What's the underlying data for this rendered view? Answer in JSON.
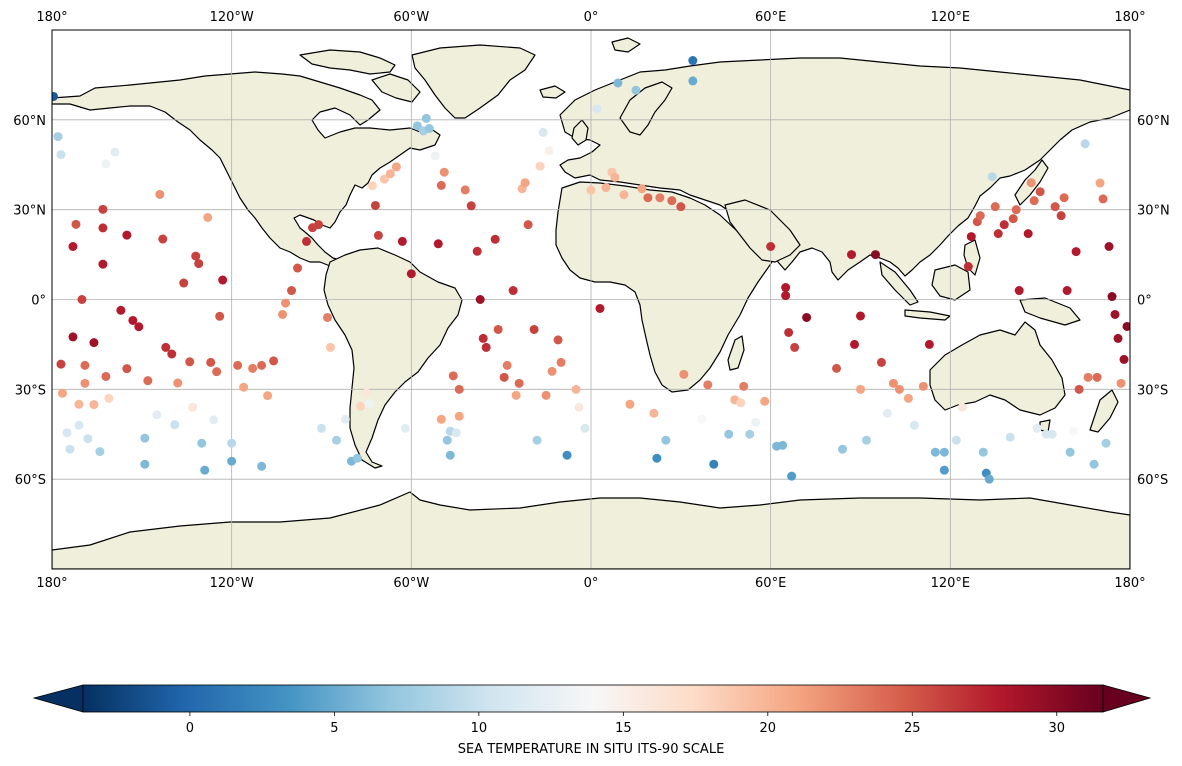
{
  "map": {
    "lon_labels": [
      "180°",
      "120°W",
      "60°W",
      "0°",
      "60°E",
      "120°E",
      "180°"
    ],
    "lon_values": [
      -180,
      -120,
      -60,
      0,
      60,
      120,
      180
    ],
    "lat_labels": [
      "60°N",
      "30°N",
      "0°",
      "30°S",
      "60°S"
    ],
    "lat_values": [
      60,
      30,
      0,
      -30,
      -60
    ],
    "lat_range": [
      -90,
      90
    ],
    "lon_range": [
      -180,
      180
    ],
    "projection": "PlateCarree",
    "gridlines": true,
    "land_color": "#efefdb",
    "ocean_color": "#ffffff"
  },
  "colorbar": {
    "label": "SEA TEMPERATURE IN SITU ITS-90 SCALE",
    "ticks": [
      "0",
      "5",
      "10",
      "15",
      "20",
      "25",
      "30"
    ],
    "tick_values": [
      0,
      5,
      10,
      15,
      20,
      25,
      30
    ],
    "vmin": -3.7,
    "vmax": 31.6,
    "colormap": "RdBu_r",
    "extend": "both"
  },
  "chart_data": {
    "type": "scatter",
    "x_label": "",
    "y_label": "",
    "value_label": "SEA TEMPERATURE IN SITU ITS-90 SCALE",
    "points": [
      [
        -179.5,
        67.8,
        -1
      ],
      [
        -178,
        54.4,
        8
      ],
      [
        -177,
        48.4,
        10
      ],
      [
        -177,
        -21.6,
        26
      ],
      [
        -176.5,
        -31.3,
        21
      ],
      [
        -175,
        -44.5,
        11
      ],
      [
        -174,
        -50,
        10
      ],
      [
        -172,
        25.1,
        25
      ],
      [
        -173,
        17.7,
        28
      ],
      [
        -173,
        -12.5,
        29
      ],
      [
        -170,
        0,
        26
      ],
      [
        -171,
        -35,
        20
      ],
      [
        -171,
        -42,
        11
      ],
      [
        -169,
        -22,
        24
      ],
      [
        -169,
        -28,
        22
      ],
      [
        -168,
        -46.5,
        10
      ],
      [
        -166,
        -14.4,
        29
      ],
      [
        -166,
        -35.1,
        20
      ],
      [
        -164,
        -50.8,
        8
      ],
      [
        -163,
        30.1,
        26
      ],
      [
        -163,
        23.9,
        27
      ],
      [
        -163,
        11.8,
        28
      ],
      [
        -162,
        -25.7,
        24
      ],
      [
        -161,
        -33,
        18
      ],
      [
        -162,
        45.3,
        13
      ],
      [
        -159,
        49.2,
        12
      ],
      [
        -157,
        -3.6,
        28
      ],
      [
        -155,
        21.5,
        28
      ],
      [
        -155,
        -23.1,
        25
      ],
      [
        -153,
        -7,
        28
      ],
      [
        -151,
        -9.1,
        28
      ],
      [
        -149,
        -46.3,
        7
      ],
      [
        -149,
        -55,
        6
      ],
      [
        -148,
        -27.1,
        24
      ],
      [
        -145,
        -38.5,
        12
      ],
      [
        -144,
        35.1,
        22
      ],
      [
        -143,
        20.2,
        26
      ],
      [
        -142,
        -16,
        27
      ],
      [
        -140,
        -18.2,
        27
      ],
      [
        -139,
        -41.8,
        10
      ],
      [
        -138,
        -27.9,
        22
      ],
      [
        -136,
        5.5,
        26
      ],
      [
        -134,
        -20.8,
        25
      ],
      [
        -133,
        -36,
        16
      ],
      [
        -132,
        14.5,
        26
      ],
      [
        -131,
        12,
        26
      ],
      [
        -130,
        -48,
        7
      ],
      [
        -129,
        -57,
        5
      ],
      [
        -128,
        27.4,
        21
      ],
      [
        -127,
        -21,
        25
      ],
      [
        -126,
        -40.2,
        12
      ],
      [
        -125,
        -24.1,
        24
      ],
      [
        -124,
        -5.6,
        25
      ],
      [
        -123,
        6.5,
        28
      ],
      [
        -120,
        -54,
        5
      ],
      [
        -120,
        -48,
        9
      ],
      [
        -118,
        -22,
        24
      ],
      [
        -116,
        -29.3,
        21
      ],
      [
        -113,
        -23,
        23
      ],
      [
        -110,
        -55.7,
        6
      ],
      [
        -110,
        -22,
        24
      ],
      [
        -108,
        -32.1,
        21
      ],
      [
        -106,
        -20.5,
        25
      ],
      [
        -103,
        -5,
        22
      ],
      [
        -102,
        -1.2,
        22
      ],
      [
        -100,
        3,
        25
      ],
      [
        -98,
        10.5,
        25
      ],
      [
        -95,
        19.4,
        27
      ],
      [
        -93,
        24,
        26
      ],
      [
        -91,
        25,
        26
      ],
      [
        -90,
        -43,
        10
      ],
      [
        -88,
        -6,
        23
      ],
      [
        -87,
        -16,
        19
      ],
      [
        -85,
        -47,
        8
      ],
      [
        -82,
        -40,
        12
      ],
      [
        -80,
        -54,
        6
      ],
      [
        -78,
        -53,
        7
      ],
      [
        -77,
        -35.7,
        18
      ],
      [
        -75,
        -31.2,
        16
      ],
      [
        -74,
        -34.8,
        13
      ],
      [
        -73,
        38,
        18
      ],
      [
        -72,
        31.4,
        26
      ],
      [
        -71,
        21.4,
        26
      ],
      [
        -69,
        40.2,
        19
      ],
      [
        -67,
        42,
        20
      ],
      [
        -65,
        44.3,
        21
      ],
      [
        -63,
        19.4,
        28
      ],
      [
        -62,
        -43,
        12
      ],
      [
        -60,
        8.6,
        28
      ],
      [
        -58,
        58,
        7
      ],
      [
        -56,
        56.3,
        8
      ],
      [
        -55,
        60.5,
        7
      ],
      [
        -54,
        57.1,
        7
      ],
      [
        -52,
        48,
        13
      ],
      [
        -51,
        18.6,
        28
      ],
      [
        -50,
        38.1,
        24
      ],
      [
        -50,
        -40,
        21
      ],
      [
        -49,
        42.5,
        22
      ],
      [
        -48,
        -47,
        7
      ],
      [
        -47,
        -44,
        9
      ],
      [
        -47,
        -52,
        6
      ],
      [
        -46,
        -25.5,
        24
      ],
      [
        -45,
        -44.5,
        11
      ],
      [
        -44,
        -30,
        24
      ],
      [
        -44,
        -39,
        21
      ],
      [
        -42,
        36.6,
        23
      ],
      [
        -40,
        31.3,
        26
      ],
      [
        -38,
        16.1,
        27
      ],
      [
        -37,
        0,
        29
      ],
      [
        -36,
        -13,
        27
      ],
      [
        -35,
        -16,
        27
      ],
      [
        -32,
        20.1,
        27
      ],
      [
        -31,
        -10,
        25
      ],
      [
        -29,
        -26,
        25
      ],
      [
        -28,
        -22,
        23
      ],
      [
        -26,
        3,
        27
      ],
      [
        -25,
        -32,
        21
      ],
      [
        -24,
        -28,
        24
      ],
      [
        -23,
        37,
        20
      ],
      [
        -22,
        39,
        21
      ],
      [
        -21,
        25,
        25
      ],
      [
        -19,
        -10,
        26
      ],
      [
        -18,
        -47,
        8
      ],
      [
        -17,
        44.5,
        18
      ],
      [
        -16,
        55.8,
        11
      ],
      [
        -15,
        -32,
        22
      ],
      [
        -14,
        49.7,
        15
      ],
      [
        -13,
        -24,
        22
      ],
      [
        -11,
        -13.5,
        25
      ],
      [
        -10,
        -21,
        23
      ],
      [
        -8,
        -52,
        3
      ],
      [
        -5,
        -30,
        20
      ],
      [
        -4,
        -36,
        16
      ],
      [
        -2,
        -43,
        11
      ],
      [
        0,
        36.5,
        19
      ],
      [
        2,
        63.7,
        11
      ],
      [
        3,
        -3,
        28
      ],
      [
        5,
        37.4,
        20
      ],
      [
        7,
        42.5,
        19
      ],
      [
        8,
        40.8,
        20
      ],
      [
        9,
        72.3,
        6
      ],
      [
        11,
        35,
        20
      ],
      [
        13,
        -35,
        21
      ],
      [
        15,
        69.9,
        7
      ],
      [
        17,
        37,
        21
      ],
      [
        19,
        34,
        24
      ],
      [
        21,
        -38,
        20
      ],
      [
        22,
        -53,
        3
      ],
      [
        23,
        34,
        23
      ],
      [
        25,
        -47,
        7
      ],
      [
        27,
        33,
        24
      ],
      [
        30,
        31,
        25
      ],
      [
        31,
        -25,
        22
      ],
      [
        34,
        79.8,
        1
      ],
      [
        34,
        73,
        5
      ],
      [
        37,
        -40,
        14
      ],
      [
        39,
        -28.5,
        23
      ],
      [
        41,
        -55,
        2
      ],
      [
        46,
        -45,
        7
      ],
      [
        48,
        -33.5,
        20
      ],
      [
        50,
        -34.5,
        18
      ],
      [
        51,
        -29,
        23
      ],
      [
        53,
        -45,
        8
      ],
      [
        55,
        -41,
        13
      ],
      [
        58,
        -34,
        21
      ],
      [
        60,
        17.7,
        27
      ],
      [
        62,
        -49,
        6
      ],
      [
        64,
        -48.7,
        6
      ],
      [
        65,
        4,
        28
      ],
      [
        65,
        1.3,
        28
      ],
      [
        66,
        -11,
        27
      ],
      [
        67,
        -59,
        4
      ],
      [
        68,
        -16,
        26
      ],
      [
        72,
        -6,
        30
      ],
      [
        82,
        -23,
        25
      ],
      [
        84,
        -50,
        7
      ],
      [
        87,
        15,
        28
      ],
      [
        88,
        -15,
        28
      ],
      [
        90,
        -30,
        21
      ],
      [
        90,
        -5.5,
        28
      ],
      [
        92,
        -47,
        8
      ],
      [
        95,
        15,
        30
      ],
      [
        97,
        -21,
        26
      ],
      [
        99,
        -38,
        12
      ],
      [
        101,
        -28,
        22
      ],
      [
        103,
        -30,
        22
      ],
      [
        106,
        -33,
        21
      ],
      [
        108,
        -42,
        11
      ],
      [
        111,
        -29,
        22
      ],
      [
        113,
        -15,
        28
      ],
      [
        115,
        -51,
        6
      ],
      [
        118,
        -51,
        6
      ],
      [
        118,
        -57,
        4
      ],
      [
        122,
        -47,
        10
      ],
      [
        124,
        -36,
        16
      ],
      [
        126,
        11,
        27
      ],
      [
        127,
        21,
        28
      ],
      [
        129,
        26,
        25
      ],
      [
        130,
        28,
        24
      ],
      [
        131,
        -51,
        7
      ],
      [
        132,
        -58,
        3
      ],
      [
        133,
        -60,
        5
      ],
      [
        134,
        41,
        9
      ],
      [
        135,
        31,
        24
      ],
      [
        136,
        22,
        27
      ],
      [
        138,
        25,
        27
      ],
      [
        140,
        -46,
        10
      ],
      [
        141,
        27,
        25
      ],
      [
        142,
        30,
        24
      ],
      [
        143,
        3,
        28
      ],
      [
        146,
        22,
        28
      ],
      [
        147,
        39,
        22
      ],
      [
        148,
        33,
        24
      ],
      [
        149,
        -43,
        12
      ],
      [
        150,
        36,
        25
      ],
      [
        152,
        -45,
        11
      ],
      [
        154,
        -45,
        11
      ],
      [
        155,
        31,
        25
      ],
      [
        157,
        28,
        26
      ],
      [
        158,
        34,
        24
      ],
      [
        159,
        3,
        28
      ],
      [
        160,
        -51,
        7
      ],
      [
        161,
        -44,
        14
      ],
      [
        162,
        16,
        28
      ],
      [
        163,
        -30,
        25
      ],
      [
        165,
        52,
        9
      ],
      [
        166,
        -26,
        23
      ],
      [
        168,
        -55,
        7
      ],
      [
        169,
        -26,
        24
      ],
      [
        170,
        38.9,
        21
      ],
      [
        171,
        33.6,
        24
      ],
      [
        172,
        -48,
        8
      ],
      [
        173,
        17.7,
        29
      ],
      [
        174,
        1,
        30
      ],
      [
        175,
        -5,
        29
      ],
      [
        176,
        -13,
        29
      ],
      [
        177,
        -28,
        22
      ],
      [
        178,
        -20,
        29
      ],
      [
        179,
        -9,
        30
      ]
    ]
  }
}
